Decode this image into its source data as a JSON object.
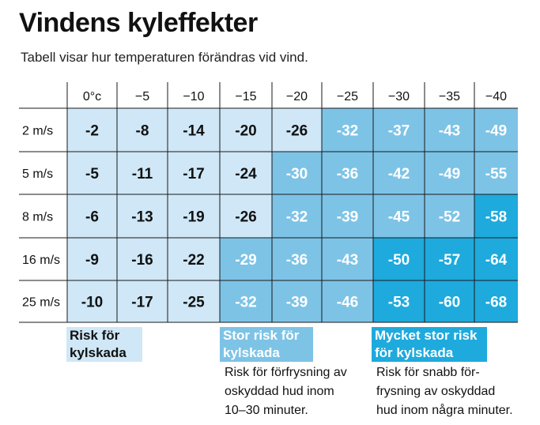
{
  "title": "Vindens kyleffekter",
  "subtitle": "Tabell visar hur temperaturen förändras vid vind.",
  "colors": {
    "level1": "#cfe7f6",
    "level2": "#7dc3e6",
    "level3": "#1eaadd",
    "grid": "#1a1a1a"
  },
  "chart_data": {
    "type": "table",
    "columns": [
      "0°c",
      "−5",
      "−10",
      "−15",
      "−20",
      "−25",
      "−30",
      "−35",
      "−40"
    ],
    "rows": [
      "2 m/s",
      "5 m/s",
      "8 m/s",
      "16 m/s",
      "25 m/s"
    ],
    "values": [
      [
        -2,
        -8,
        -14,
        -20,
        -26,
        -32,
        -37,
        -43,
        -49
      ],
      [
        -5,
        -11,
        -17,
        -24,
        -30,
        -36,
        -42,
        -49,
        -55
      ],
      [
        -6,
        -13,
        -19,
        -26,
        -32,
        -39,
        -45,
        -52,
        -58
      ],
      [
        -9,
        -16,
        -22,
        -29,
        -36,
        -43,
        -50,
        -57,
        -64
      ],
      [
        -10,
        -17,
        -25,
        -32,
        -39,
        -46,
        -53,
        -60,
        -68
      ]
    ],
    "risk_levels": [
      [
        1,
        1,
        1,
        1,
        1,
        2,
        2,
        2,
        2
      ],
      [
        1,
        1,
        1,
        1,
        2,
        2,
        2,
        2,
        2
      ],
      [
        1,
        1,
        1,
        1,
        2,
        2,
        2,
        2,
        3
      ],
      [
        1,
        1,
        1,
        2,
        2,
        2,
        3,
        3,
        3
      ],
      [
        1,
        1,
        1,
        2,
        2,
        2,
        3,
        3,
        3
      ]
    ]
  },
  "legend": [
    {
      "level": 1,
      "label_lines": [
        "Risk för",
        "kylskada"
      ],
      "description_lines": []
    },
    {
      "level": 2,
      "label_lines": [
        "Stor risk för",
        "kylskada"
      ],
      "description_lines": [
        "Risk för förfrysning av",
        "oskyddad hud inom",
        "10–30 minuter."
      ]
    },
    {
      "level": 3,
      "label_lines": [
        "Mycket stor risk",
        "för kylskada"
      ],
      "description_lines": [
        "Risk för snabb för-",
        "frysning av oskyddad",
        "hud inom några minuter."
      ]
    }
  ]
}
